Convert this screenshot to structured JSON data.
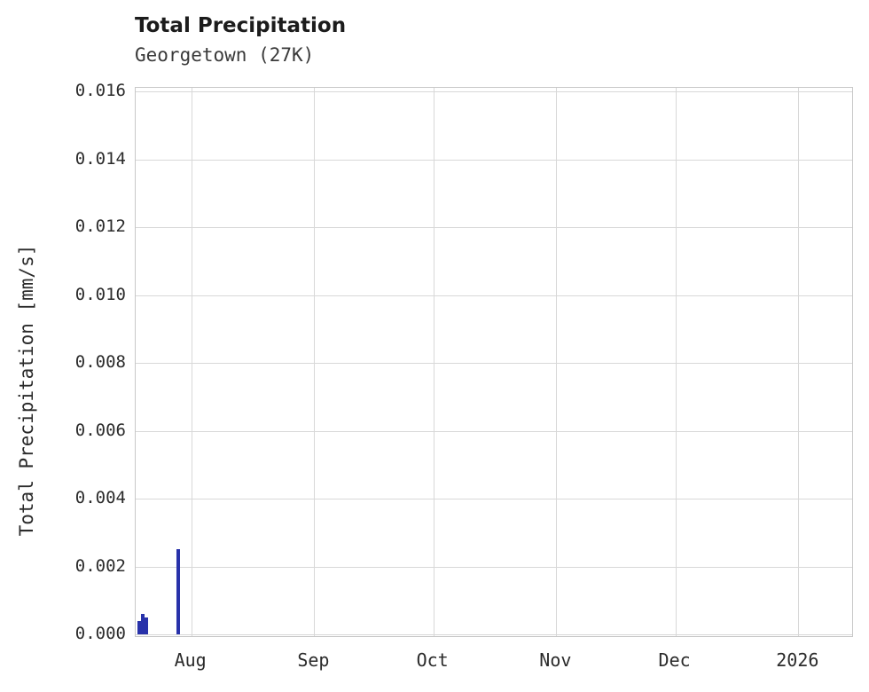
{
  "chart_data": {
    "type": "bar",
    "title": "Total Precipitation",
    "subtitle": "Georgetown (27K)",
    "xlabel": "",
    "ylabel": "Total Precipitation [mm/s]",
    "ylim": [
      0,
      0.016
    ],
    "grid": true,
    "legend": "none",
    "background_color": "#ffffff",
    "grid_color": "#d8d8d8",
    "bar_color": "#2832aa",
    "yticks": [
      {
        "label": "0.000",
        "value": 0.0
      },
      {
        "label": "0.002",
        "value": 0.002
      },
      {
        "label": "0.004",
        "value": 0.004
      },
      {
        "label": "0.006",
        "value": 0.006
      },
      {
        "label": "0.008",
        "value": 0.008
      },
      {
        "label": "0.010",
        "value": 0.01
      },
      {
        "label": "0.012",
        "value": 0.012
      },
      {
        "label": "0.014",
        "value": 0.014
      },
      {
        "label": "0.016",
        "value": 0.016
      }
    ],
    "x_domain_days": [
      0,
      181
    ],
    "x_domain_note": "time axis approx. mid-July 2025 through mid-January 2026",
    "xticks": [
      {
        "label": "Aug",
        "day": 14
      },
      {
        "label": "Sep",
        "day": 45
      },
      {
        "label": "Oct",
        "day": 75
      },
      {
        "label": "Nov",
        "day": 106
      },
      {
        "label": "Dec",
        "day": 136
      },
      {
        "label": "2026",
        "day": 167
      }
    ],
    "bars": [
      {
        "x_day": 0.9,
        "approx_date": "2025-07-19",
        "value": 0.0004
      },
      {
        "x_day": 1.8,
        "approx_date": "2025-07-20",
        "value": 0.0006
      },
      {
        "x_day": 2.7,
        "approx_date": "2025-07-21",
        "value": 0.0005
      },
      {
        "x_day": 10.7,
        "approx_date": "2025-07-29",
        "value": 0.0025
      }
    ]
  }
}
